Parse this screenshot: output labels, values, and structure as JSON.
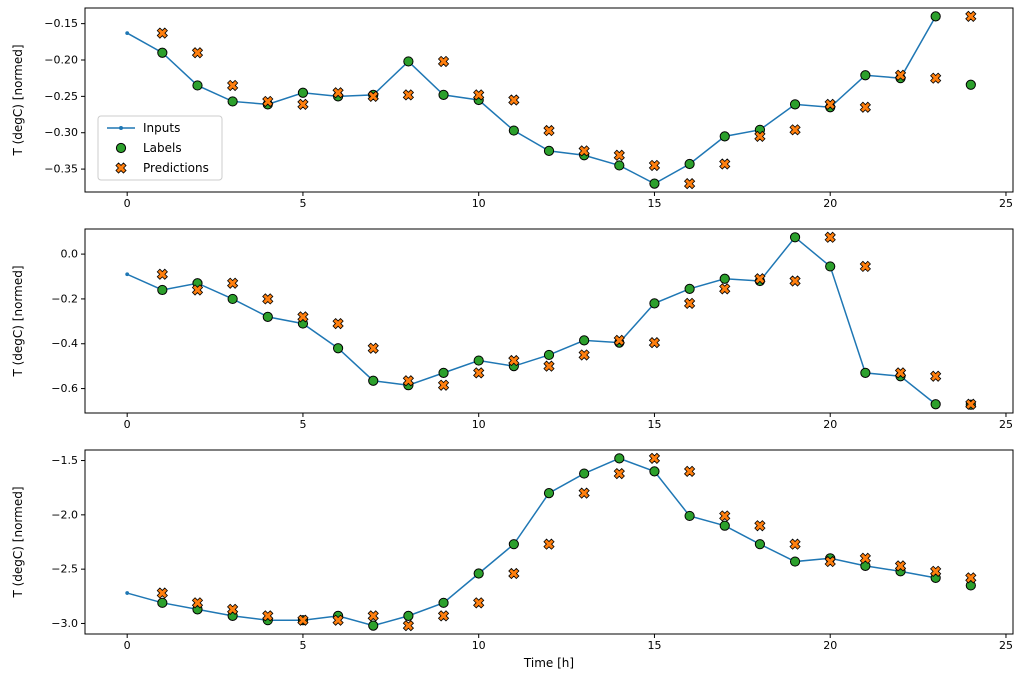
{
  "figure": {
    "background": "#ffffff",
    "xlabel": "Time [h]",
    "ylabel": "T (degC) [normed]",
    "legend": {
      "items": [
        {
          "label": "Inputs",
          "marker": "line-dot",
          "color": "#1f77b4"
        },
        {
          "label": "Labels",
          "marker": "circle",
          "color": "#2ca02c"
        },
        {
          "label": "Predictions",
          "marker": "X",
          "color": "#ff7f0e"
        }
      ]
    },
    "colors": {
      "inputs": "#1f77b4",
      "labels": "#2ca02c",
      "predictions": "#ff7f0e",
      "marker_edge": "#000000",
      "axes_frame": "#000000",
      "legend_border": "#cccccc"
    }
  },
  "chart_data": [
    {
      "type": "line",
      "title": "",
      "xlabel": "",
      "ylabel": "T (degC) [normed]",
      "xlim": [
        -1.2,
        25.2
      ],
      "ylim": [
        -0.3815,
        -0.1285
      ],
      "grid": false,
      "legend_visible": true,
      "legend_position": "center-left",
      "xticks": {
        "values": [
          0,
          5,
          10,
          15,
          20,
          25
        ],
        "labels": [
          "0",
          "5",
          "10",
          "15",
          "20",
          "25"
        ]
      },
      "yticks": {
        "values": [
          -0.15,
          -0.2,
          -0.25,
          -0.3,
          -0.35
        ],
        "labels": [
          "−0.15",
          "−0.20",
          "−0.25",
          "−0.30",
          "−0.35"
        ]
      },
      "series": [
        {
          "name": "Inputs",
          "plot": "line",
          "marker": "dot",
          "color": "#1f77b4",
          "x": [
            0,
            1,
            2,
            3,
            4,
            5,
            6,
            7,
            8,
            9,
            10,
            11,
            12,
            13,
            14,
            15,
            16,
            17,
            18,
            19,
            20,
            21,
            22,
            23
          ],
          "y": [
            -0.163,
            -0.19,
            -0.235,
            -0.257,
            -0.261,
            -0.245,
            -0.25,
            -0.248,
            -0.202,
            -0.248,
            -0.255,
            -0.297,
            -0.325,
            -0.331,
            -0.345,
            -0.37,
            -0.343,
            -0.305,
            -0.296,
            -0.261,
            -0.265,
            -0.221,
            -0.225,
            -0.14
          ]
        },
        {
          "name": "Labels",
          "plot": "scatter",
          "marker": "circle",
          "color": "#2ca02c",
          "x": [
            1,
            2,
            3,
            4,
            5,
            6,
            7,
            8,
            9,
            10,
            11,
            12,
            13,
            14,
            15,
            16,
            17,
            18,
            19,
            20,
            21,
            22,
            23,
            24
          ],
          "y": [
            -0.19,
            -0.235,
            -0.257,
            -0.261,
            -0.245,
            -0.25,
            -0.248,
            -0.202,
            -0.248,
            -0.255,
            -0.297,
            -0.325,
            -0.331,
            -0.345,
            -0.37,
            -0.343,
            -0.305,
            -0.296,
            -0.261,
            -0.265,
            -0.221,
            -0.225,
            -0.14,
            -0.234
          ]
        },
        {
          "name": "Predictions",
          "plot": "scatter",
          "marker": "X",
          "color": "#ff7f0e",
          "x": [
            1,
            2,
            3,
            4,
            5,
            6,
            7,
            8,
            9,
            10,
            11,
            12,
            13,
            14,
            15,
            16,
            17,
            18,
            19,
            20,
            21,
            22,
            23,
            24
          ],
          "y": [
            -0.163,
            -0.19,
            -0.235,
            -0.257,
            -0.261,
            -0.245,
            -0.25,
            -0.248,
            -0.202,
            -0.248,
            -0.255,
            -0.297,
            -0.325,
            -0.331,
            -0.345,
            -0.37,
            -0.343,
            -0.305,
            -0.296,
            -0.261,
            -0.265,
            -0.221,
            -0.225,
            -0.14
          ]
        }
      ]
    },
    {
      "type": "line",
      "title": "",
      "xlabel": "",
      "ylabel": "T (degC) [normed]",
      "xlim": [
        -1.2,
        25.2
      ],
      "ylim": [
        -0.709,
        0.112
      ],
      "grid": false,
      "legend_visible": false,
      "xticks": {
        "values": [
          0,
          5,
          10,
          15,
          20,
          25
        ],
        "labels": [
          "0",
          "5",
          "10",
          "15",
          "20",
          "25"
        ]
      },
      "yticks": {
        "values": [
          0.0,
          -0.2,
          -0.4,
          -0.6
        ],
        "labels": [
          "0.0",
          "−0.2",
          "−0.4",
          "−0.6"
        ]
      },
      "series": [
        {
          "name": "Inputs",
          "plot": "line",
          "marker": "dot",
          "color": "#1f77b4",
          "x": [
            0,
            1,
            2,
            3,
            4,
            5,
            6,
            7,
            8,
            9,
            10,
            11,
            12,
            13,
            14,
            15,
            16,
            17,
            18,
            19,
            20,
            21,
            22,
            23
          ],
          "y": [
            -0.09,
            -0.16,
            -0.13,
            -0.2,
            -0.28,
            -0.31,
            -0.42,
            -0.565,
            -0.585,
            -0.53,
            -0.475,
            -0.5,
            -0.45,
            -0.385,
            -0.395,
            -0.22,
            -0.155,
            -0.11,
            -0.12,
            0.075,
            -0.055,
            -0.53,
            -0.545,
            -0.67
          ]
        },
        {
          "name": "Labels",
          "plot": "scatter",
          "marker": "circle",
          "color": "#2ca02c",
          "x": [
            1,
            2,
            3,
            4,
            5,
            6,
            7,
            8,
            9,
            10,
            11,
            12,
            13,
            14,
            15,
            16,
            17,
            18,
            19,
            20,
            21,
            22,
            23,
            24
          ],
          "y": [
            -0.16,
            -0.13,
            -0.2,
            -0.28,
            -0.31,
            -0.42,
            -0.565,
            -0.585,
            -0.53,
            -0.475,
            -0.5,
            -0.45,
            -0.385,
            -0.395,
            -0.22,
            -0.155,
            -0.11,
            -0.12,
            0.075,
            -0.055,
            -0.53,
            -0.545,
            -0.67,
            -0.672
          ]
        },
        {
          "name": "Predictions",
          "plot": "scatter",
          "marker": "X",
          "color": "#ff7f0e",
          "x": [
            1,
            2,
            3,
            4,
            5,
            6,
            7,
            8,
            9,
            10,
            11,
            12,
            13,
            14,
            15,
            16,
            17,
            18,
            19,
            20,
            21,
            22,
            23,
            24
          ],
          "y": [
            -0.09,
            -0.16,
            -0.13,
            -0.2,
            -0.28,
            -0.31,
            -0.42,
            -0.565,
            -0.585,
            -0.53,
            -0.475,
            -0.5,
            -0.45,
            -0.385,
            -0.395,
            -0.22,
            -0.155,
            -0.11,
            -0.12,
            0.075,
            -0.055,
            -0.53,
            -0.545,
            -0.67
          ]
        }
      ]
    },
    {
      "type": "line",
      "title": "",
      "xlabel": "Time [h]",
      "ylabel": "T (degC) [normed]",
      "xlim": [
        -1.2,
        25.2
      ],
      "ylim": [
        -3.097,
        -1.403
      ],
      "grid": false,
      "legend_visible": false,
      "xticks": {
        "values": [
          0,
          5,
          10,
          15,
          20,
          25
        ],
        "labels": [
          "0",
          "5",
          "10",
          "15",
          "20",
          "25"
        ]
      },
      "yticks": {
        "values": [
          -1.5,
          -2.0,
          -2.5,
          -3.0
        ],
        "labels": [
          "−1.5",
          "−2.0",
          "−2.5",
          "−3.0"
        ]
      },
      "series": [
        {
          "name": "Inputs",
          "plot": "line",
          "marker": "dot",
          "color": "#1f77b4",
          "x": [
            0,
            1,
            2,
            3,
            4,
            5,
            6,
            7,
            8,
            9,
            10,
            11,
            12,
            13,
            14,
            15,
            16,
            17,
            18,
            19,
            20,
            21,
            22,
            23
          ],
          "y": [
            -2.72,
            -2.81,
            -2.87,
            -2.93,
            -2.97,
            -2.97,
            -2.93,
            -3.02,
            -2.93,
            -2.81,
            -2.54,
            -2.27,
            -1.8,
            -1.62,
            -1.48,
            -1.6,
            -2.01,
            -2.1,
            -2.27,
            -2.43,
            -2.4,
            -2.47,
            -2.52,
            -2.58
          ]
        },
        {
          "name": "Labels",
          "plot": "scatter",
          "marker": "circle",
          "color": "#2ca02c",
          "x": [
            1,
            2,
            3,
            4,
            5,
            6,
            7,
            8,
            9,
            10,
            11,
            12,
            13,
            14,
            15,
            16,
            17,
            18,
            19,
            20,
            21,
            22,
            23,
            24
          ],
          "y": [
            -2.81,
            -2.87,
            -2.93,
            -2.97,
            -2.97,
            -2.93,
            -3.02,
            -2.93,
            -2.81,
            -2.54,
            -2.27,
            -1.8,
            -1.62,
            -1.48,
            -1.6,
            -2.01,
            -2.1,
            -2.27,
            -2.43,
            -2.4,
            -2.47,
            -2.52,
            -2.58,
            -2.65
          ]
        },
        {
          "name": "Predictions",
          "plot": "scatter",
          "marker": "X",
          "color": "#ff7f0e",
          "x": [
            1,
            2,
            3,
            4,
            5,
            6,
            7,
            8,
            9,
            10,
            11,
            12,
            13,
            14,
            15,
            16,
            17,
            18,
            19,
            20,
            21,
            22,
            23,
            24
          ],
          "y": [
            -2.72,
            -2.81,
            -2.87,
            -2.93,
            -2.97,
            -2.97,
            -2.93,
            -3.02,
            -2.93,
            -2.81,
            -2.54,
            -2.27,
            -1.8,
            -1.62,
            -1.48,
            -1.6,
            -2.01,
            -2.1,
            -2.27,
            -2.43,
            -2.4,
            -2.47,
            -2.52,
            -2.58
          ]
        }
      ]
    }
  ]
}
